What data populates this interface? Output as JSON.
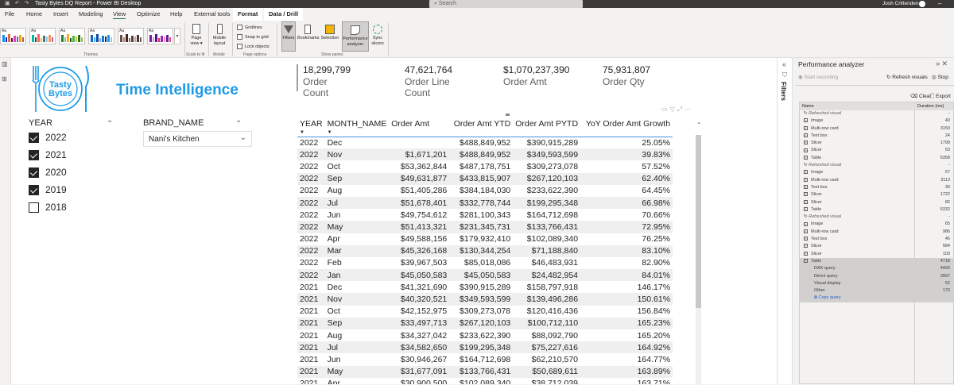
{
  "window": {
    "title": "Tasty Bytes DQ Report - Power BI Desktop",
    "search_placeholder": "Search",
    "user": "Josh Crittenden"
  },
  "menu": {
    "tabs": [
      {
        "label": "File"
      },
      {
        "label": "Home"
      },
      {
        "label": "Insert"
      },
      {
        "label": "Modeling"
      },
      {
        "label": "View",
        "active": true
      },
      {
        "label": "Optimize"
      },
      {
        "label": "Help"
      },
      {
        "label": "External tools"
      },
      {
        "label": "Format",
        "contextual": true
      },
      {
        "label": "Data / Drill",
        "contextual": true
      }
    ]
  },
  "ribbon": {
    "themes_label": "Themes",
    "page_view": "Page view",
    "scale_label": "Scale to fit",
    "mobile_layout": "Mobile layout",
    "mobile_label": "Mobile",
    "gridlines": "Gridlines",
    "snap_to_grid": "Snap to grid",
    "lock_objects": "Lock objects",
    "page_options_label": "Page options",
    "filters": "Filters",
    "bookmarks": "Bookmarks",
    "selection": "Selection",
    "performance_analyzer": "Performance analyzer",
    "sync_slicers": "Sync slicers",
    "show_panes_label": "Show panes"
  },
  "report": {
    "logo_line1": "Tasty",
    "logo_line2": "Bytes",
    "page_title": "Time Intelligence",
    "year_slicer": {
      "title": "YEAR",
      "items": [
        {
          "label": "2022",
          "checked": true
        },
        {
          "label": "2021",
          "checked": true
        },
        {
          "label": "2020",
          "checked": true
        },
        {
          "label": "2019",
          "checked": true
        },
        {
          "label": "2018",
          "checked": false
        }
      ]
    },
    "brand_slicer": {
      "title": "BRAND_NAME",
      "value": "Nani's Kitchen"
    },
    "cards": [
      {
        "value": "18,299,799",
        "label": "Order Count"
      },
      {
        "value": "47,621,764",
        "label": "Order Line Count"
      },
      {
        "value": "$1,070,237,390",
        "label": "Order Amt"
      },
      {
        "value": "75,931,807",
        "label": "Order Qty"
      }
    ],
    "table": {
      "columns": [
        "YEAR",
        "MONTH_NAME",
        "Order Amt",
        "Order Amt YTD",
        "Order Amt PYTD",
        "YoY Order Amt Growth"
      ],
      "rows": [
        [
          "2022",
          "Dec",
          "",
          "$488,849,952",
          "$390,915,289",
          "25.05%"
        ],
        [
          "2022",
          "Nov",
          "$1,671,201",
          "$488,849,952",
          "$349,593,599",
          "39.83%"
        ],
        [
          "2022",
          "Oct",
          "$53,362,844",
          "$487,178,751",
          "$309,273,078",
          "57.52%"
        ],
        [
          "2022",
          "Sep",
          "$49,631,877",
          "$433,815,907",
          "$267,120,103",
          "62.40%"
        ],
        [
          "2022",
          "Aug",
          "$51,405,286",
          "$384,184,030",
          "$233,622,390",
          "64.45%"
        ],
        [
          "2022",
          "Jul",
          "$51,678,401",
          "$332,778,744",
          "$199,295,348",
          "66.98%"
        ],
        [
          "2022",
          "Jun",
          "$49,754,612",
          "$281,100,343",
          "$164,712,698",
          "70.66%"
        ],
        [
          "2022",
          "May",
          "$51,413,321",
          "$231,345,731",
          "$133,766,431",
          "72.95%"
        ],
        [
          "2022",
          "Apr",
          "$49,588,156",
          "$179,932,410",
          "$102,089,340",
          "76.25%"
        ],
        [
          "2022",
          "Mar",
          "$45,326,168",
          "$130,344,254",
          "$71,188,840",
          "83.10%"
        ],
        [
          "2022",
          "Feb",
          "$39,967,503",
          "$85,018,086",
          "$46,483,931",
          "82.90%"
        ],
        [
          "2022",
          "Jan",
          "$45,050,583",
          "$45,050,583",
          "$24,482,954",
          "84.01%"
        ],
        [
          "2021",
          "Dec",
          "$41,321,690",
          "$390,915,289",
          "$158,797,918",
          "146.17%"
        ],
        [
          "2021",
          "Nov",
          "$40,320,521",
          "$349,593,599",
          "$139,496,286",
          "150.61%"
        ],
        [
          "2021",
          "Oct",
          "$42,152,975",
          "$309,273,078",
          "$120,416,436",
          "156.84%"
        ],
        [
          "2021",
          "Sep",
          "$33,497,713",
          "$267,120,103",
          "$100,712,110",
          "165.23%"
        ],
        [
          "2021",
          "Aug",
          "$34,327,042",
          "$233,622,390",
          "$88,092,790",
          "165.20%"
        ],
        [
          "2021",
          "Jul",
          "$34,582,650",
          "$199,295,348",
          "$75,227,616",
          "164.92%"
        ],
        [
          "2021",
          "Jun",
          "$30,946,267",
          "$164,712,698",
          "$62,210,570",
          "164.77%"
        ],
        [
          "2021",
          "May",
          "$31,677,091",
          "$133,766,431",
          "$50,689,611",
          "163.89%"
        ],
        [
          "2021",
          "Apr",
          "$30,900,500",
          "$102,089,340",
          "$38,712,039",
          "163.71%"
        ]
      ]
    }
  },
  "filters_pane": {
    "label": "Filters"
  },
  "performance_analyzer": {
    "title": "Performance analyzer",
    "start_recording": "Start recording",
    "refresh_visuals": "Refresh visuals",
    "stop": "Stop",
    "clear": "Clear",
    "export": "Export",
    "col_name": "Name",
    "col_duration": "Duration (ms)",
    "entries": [
      {
        "type": "refresh",
        "name": "Refreshed visual",
        "duration": "-"
      },
      {
        "type": "item",
        "name": "Image",
        "duration": "40"
      },
      {
        "type": "item",
        "name": "Multi-row card",
        "duration": "3150"
      },
      {
        "type": "item",
        "name": "Text box",
        "duration": "24"
      },
      {
        "type": "item",
        "name": "Slicer",
        "duration": "1799"
      },
      {
        "type": "item",
        "name": "Slicer",
        "duration": "53"
      },
      {
        "type": "item",
        "name": "Table",
        "duration": "6358"
      },
      {
        "type": "refresh",
        "name": "Refreshed visual",
        "duration": "-"
      },
      {
        "type": "item",
        "name": "Image",
        "duration": "57"
      },
      {
        "type": "item",
        "name": "Multi-row card",
        "duration": "3113"
      },
      {
        "type": "item",
        "name": "Text box",
        "duration": "30"
      },
      {
        "type": "item",
        "name": "Slicer",
        "duration": "1722"
      },
      {
        "type": "item",
        "name": "Slicer",
        "duration": "82"
      },
      {
        "type": "item",
        "name": "Table",
        "duration": "6332"
      },
      {
        "type": "refresh",
        "name": "Refreshed visual",
        "duration": "-"
      },
      {
        "type": "item",
        "name": "Image",
        "duration": "65"
      },
      {
        "type": "item",
        "name": "Multi-row card",
        "duration": "986"
      },
      {
        "type": "item",
        "name": "Text box",
        "duration": "45"
      },
      {
        "type": "item",
        "name": "Slicer",
        "duration": "584"
      },
      {
        "type": "item",
        "name": "Slicer",
        "duration": "103"
      },
      {
        "type": "expanded",
        "name": "Table",
        "duration": "4718"
      },
      {
        "type": "sub",
        "name": "DAX query",
        "duration": "4493"
      },
      {
        "type": "sub",
        "name": "Direct query",
        "duration": "3997"
      },
      {
        "type": "sub",
        "name": "Visual display",
        "duration": "52"
      },
      {
        "type": "sub",
        "name": "Other",
        "duration": "173"
      },
      {
        "type": "copy",
        "name": "Copy query",
        "duration": ""
      }
    ]
  },
  "colors": {
    "accent_blue": "#1e9be6",
    "titlebar": "#3b3a39",
    "selected_row": "#d2d0ce"
  }
}
